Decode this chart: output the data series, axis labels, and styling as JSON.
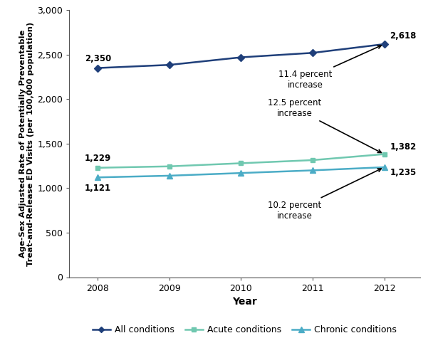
{
  "years": [
    2008,
    2009,
    2010,
    2011,
    2012
  ],
  "all_conditions": [
    2350,
    2385,
    2470,
    2520,
    2618
  ],
  "acute_conditions": [
    1229,
    1245,
    1280,
    1315,
    1382
  ],
  "chronic_conditions": [
    1121,
    1140,
    1170,
    1200,
    1235
  ],
  "all_color": "#1F3F7A",
  "acute_color": "#70C8B0",
  "chronic_color": "#4BACC6",
  "xlabel": "Year",
  "ylabel": "Age-Sex Adjusted Rate of Potentially Preventable\nTreat-and-Release ED Visits (per 100,000 population)",
  "ylim": [
    0,
    3000
  ],
  "yticks": [
    0,
    500,
    1000,
    1500,
    2000,
    2500,
    3000
  ],
  "legend_labels": [
    "All conditions",
    "Acute conditions",
    "Chronic conditions"
  ],
  "annotation_all": "11.4 percent\nincrease",
  "annotation_acute": "12.5 percent\nincrease",
  "annotation_chronic": "10.2 percent\nincrease",
  "label_2008_all": "2,350",
  "label_2008_acute": "1,229",
  "label_2008_chronic": "1,121",
  "label_2012_all": "2,618",
  "label_2012_acute": "1,382",
  "label_2012_chronic": "1,235"
}
